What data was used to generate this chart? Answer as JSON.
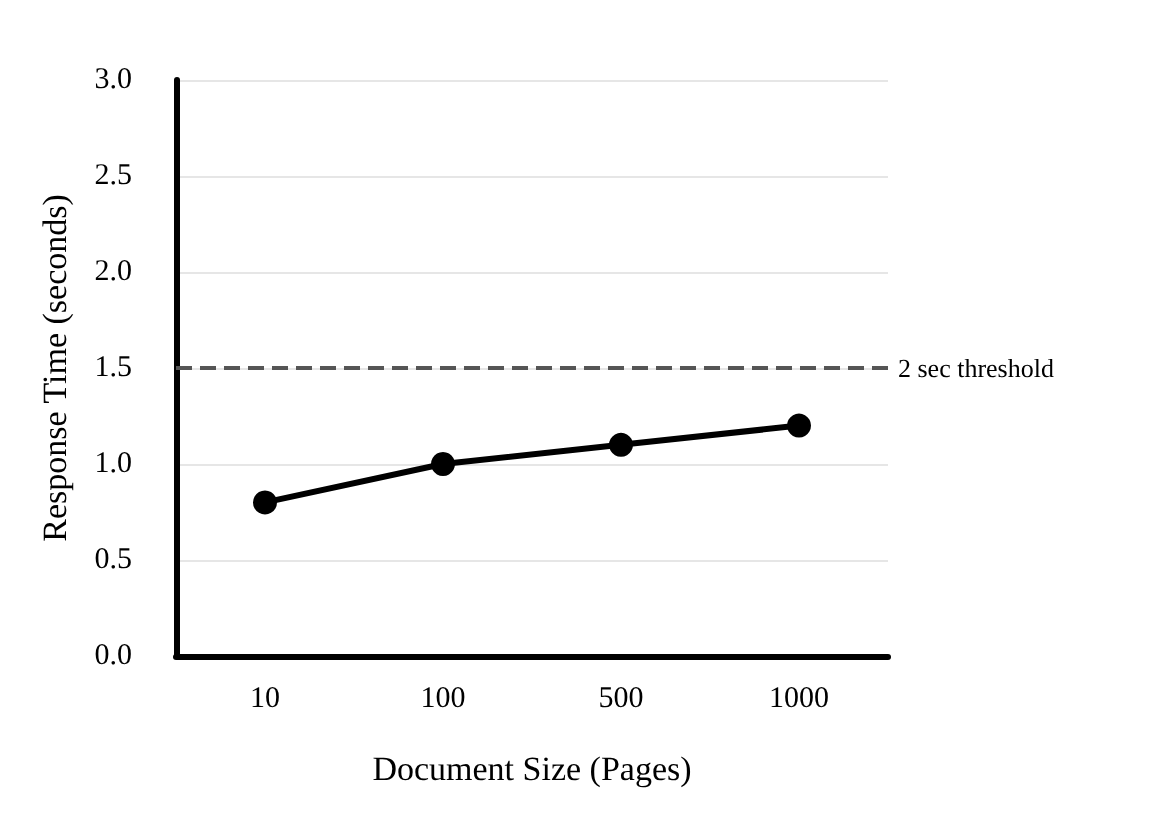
{
  "chart_data": {
    "type": "line",
    "xlabel": "Document Size (Pages)",
    "ylabel": "Response Time (seconds)",
    "categories": [
      "10",
      "100",
      "500",
      "1000"
    ],
    "series": [
      {
        "color": "#000000",
        "values": [
          0.8,
          1.0,
          1.1,
          1.2
        ]
      }
    ],
    "ylim": [
      0,
      3
    ],
    "yticks": [
      {
        "value": 0,
        "label": "0.0"
      },
      {
        "value": 0.5,
        "label": "0.5"
      },
      {
        "value": 1,
        "label": "1.0"
      },
      {
        "value": 1.5,
        "label": "1.5"
      },
      {
        "value": 2,
        "label": "2.0"
      },
      {
        "value": 2.5,
        "label": "2.5"
      },
      {
        "value": 3,
        "label": "3.0"
      }
    ],
    "ref_lines": [
      {
        "axis": "y",
        "value": 1.5,
        "label": "2 sec threshold",
        "color": "#555555",
        "line_style": "dashed"
      }
    ],
    "grid": "y",
    "marker": "circle",
    "line_style": "solid"
  }
}
